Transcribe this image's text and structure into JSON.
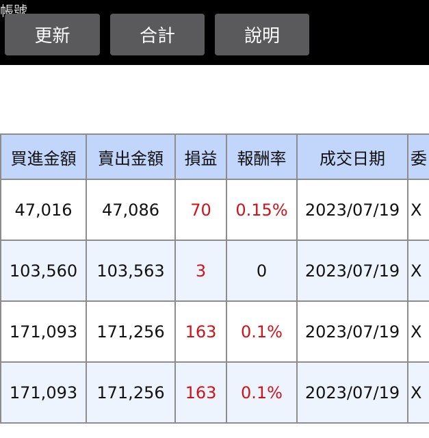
{
  "header": {
    "account_text": "帳號",
    "buttons": [
      "更新",
      "合計",
      "說明"
    ]
  },
  "table": {
    "columns": [
      "買進金額",
      "賣出金額",
      "損益",
      "報酬率",
      "成交日期",
      "委"
    ],
    "rows": [
      {
        "buy": "47,016",
        "sell": "47,086",
        "pl": "70",
        "rate": "0.15%",
        "date": "2023/07/19",
        "extra": "X",
        "rate_red": true
      },
      {
        "buy": "103,560",
        "sell": "103,563",
        "pl": "3",
        "rate": "0",
        "date": "2023/07/19",
        "extra": "X",
        "rate_red": false
      },
      {
        "buy": "171,093",
        "sell": "171,256",
        "pl": "163",
        "rate": "0.1%",
        "date": "2023/07/19",
        "extra": "X",
        "rate_red": true
      },
      {
        "buy": "171,093",
        "sell": "171,256",
        "pl": "163",
        "rate": "0.1%",
        "date": "2023/07/19",
        "extra": "X",
        "rate_red": true
      }
    ]
  },
  "colors": {
    "profit": "#d0121b",
    "header_bg": "#c2d5fb",
    "alt_row": "#eef4fe"
  }
}
